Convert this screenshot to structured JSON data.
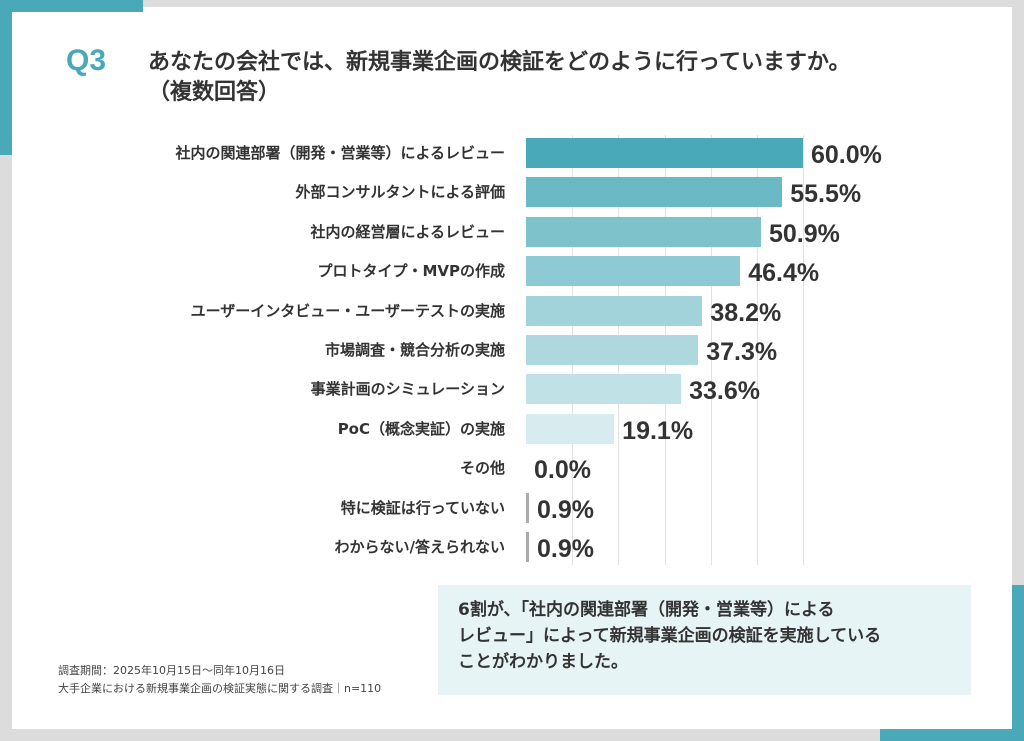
{
  "colors": {
    "accent": "#4aa9b8",
    "zero_bar": "#aaaaaa"
  },
  "header": {
    "q_label": "Q3",
    "title_line1": "あなたの会社では、新規事業企画の検証をどのように行っていますか。",
    "title_line2": "（複数回答）"
  },
  "chart_data": {
    "type": "bar",
    "orientation": "horizontal",
    "title": "",
    "xlabel": "",
    "ylabel": "",
    "xlim": [
      0,
      60
    ],
    "grid": true,
    "categories": [
      "社内の関連部署（開発・営業等）によるレビュー",
      "外部コンサルタントによる評価",
      "社内の経営層によるレビュー",
      "プロトタイプ・MVPの作成",
      "ユーザーインタビュー・ユーザーテストの実施",
      "市場調査・競合分析の実施",
      "事業計画のシミュレーション",
      "PoC（概念実証）の実施",
      "その他",
      "特に検証は行っていない",
      "わからない/答えられない"
    ],
    "values": [
      60.0,
      55.5,
      50.9,
      46.4,
      38.2,
      37.3,
      33.6,
      19.1,
      0.0,
      0.9,
      0.9
    ],
    "value_labels": [
      "60.0%",
      "55.5%",
      "50.9%",
      "46.4%",
      "38.2%",
      "37.3%",
      "33.6%",
      "19.1%",
      "0.0%",
      "0.9%",
      "0.9%"
    ],
    "bar_colors": [
      "#4aa9b8",
      "#6bb9c5",
      "#7ec2cc",
      "#8ecad3",
      "#a2d3da",
      "#aed8de",
      "#c0e1e5",
      "#d6ecef",
      "#aaaaaa",
      "#aaaaaa",
      "#aaaaaa"
    ]
  },
  "footnote": {
    "line1": "調査期間：2025年10月15日〜同年10月16日",
    "line2": "大手企業における新規事業企画の検証実態に関する調査｜n=110"
  },
  "summary": {
    "line1": "6割が、「社内の関連部署（開発・営業等）による",
    "line2": "レビュー」によって新規事業企画の検証を実施している",
    "line3": "ことがわかりました。"
  }
}
